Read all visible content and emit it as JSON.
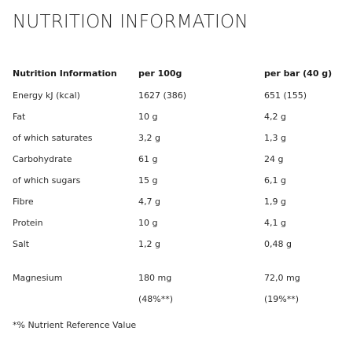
{
  "title": "NUTRITION INFORMATION",
  "table": {
    "headers": [
      "Nutrition Information",
      "per 100g",
      "per bar (40 g)"
    ],
    "rows": [
      [
        "Energy kJ (kcal)",
        "1627 (386)",
        "651 (155)"
      ],
      [
        "Fat",
        "10 g",
        "4,2 g"
      ],
      [
        "of which saturates",
        "3,2 g",
        "1,3 g"
      ],
      [
        "Carbohydrate",
        "61 g",
        "24 g"
      ],
      [
        "of which sugars",
        "15 g",
        "6,1 g"
      ],
      [
        "Fibre",
        "4,7 g",
        "1,9 g"
      ],
      [
        "Protein",
        "10 g",
        "4,1 g"
      ],
      [
        "Salt",
        "1,2 g",
        "0,48 g"
      ],
      [
        "Magnesium",
        "180 mg",
        "72,0 mg"
      ],
      [
        "",
        "(48%**)",
        "(19%**)"
      ]
    ]
  },
  "footnote": "*% Nutrient Reference Value"
}
